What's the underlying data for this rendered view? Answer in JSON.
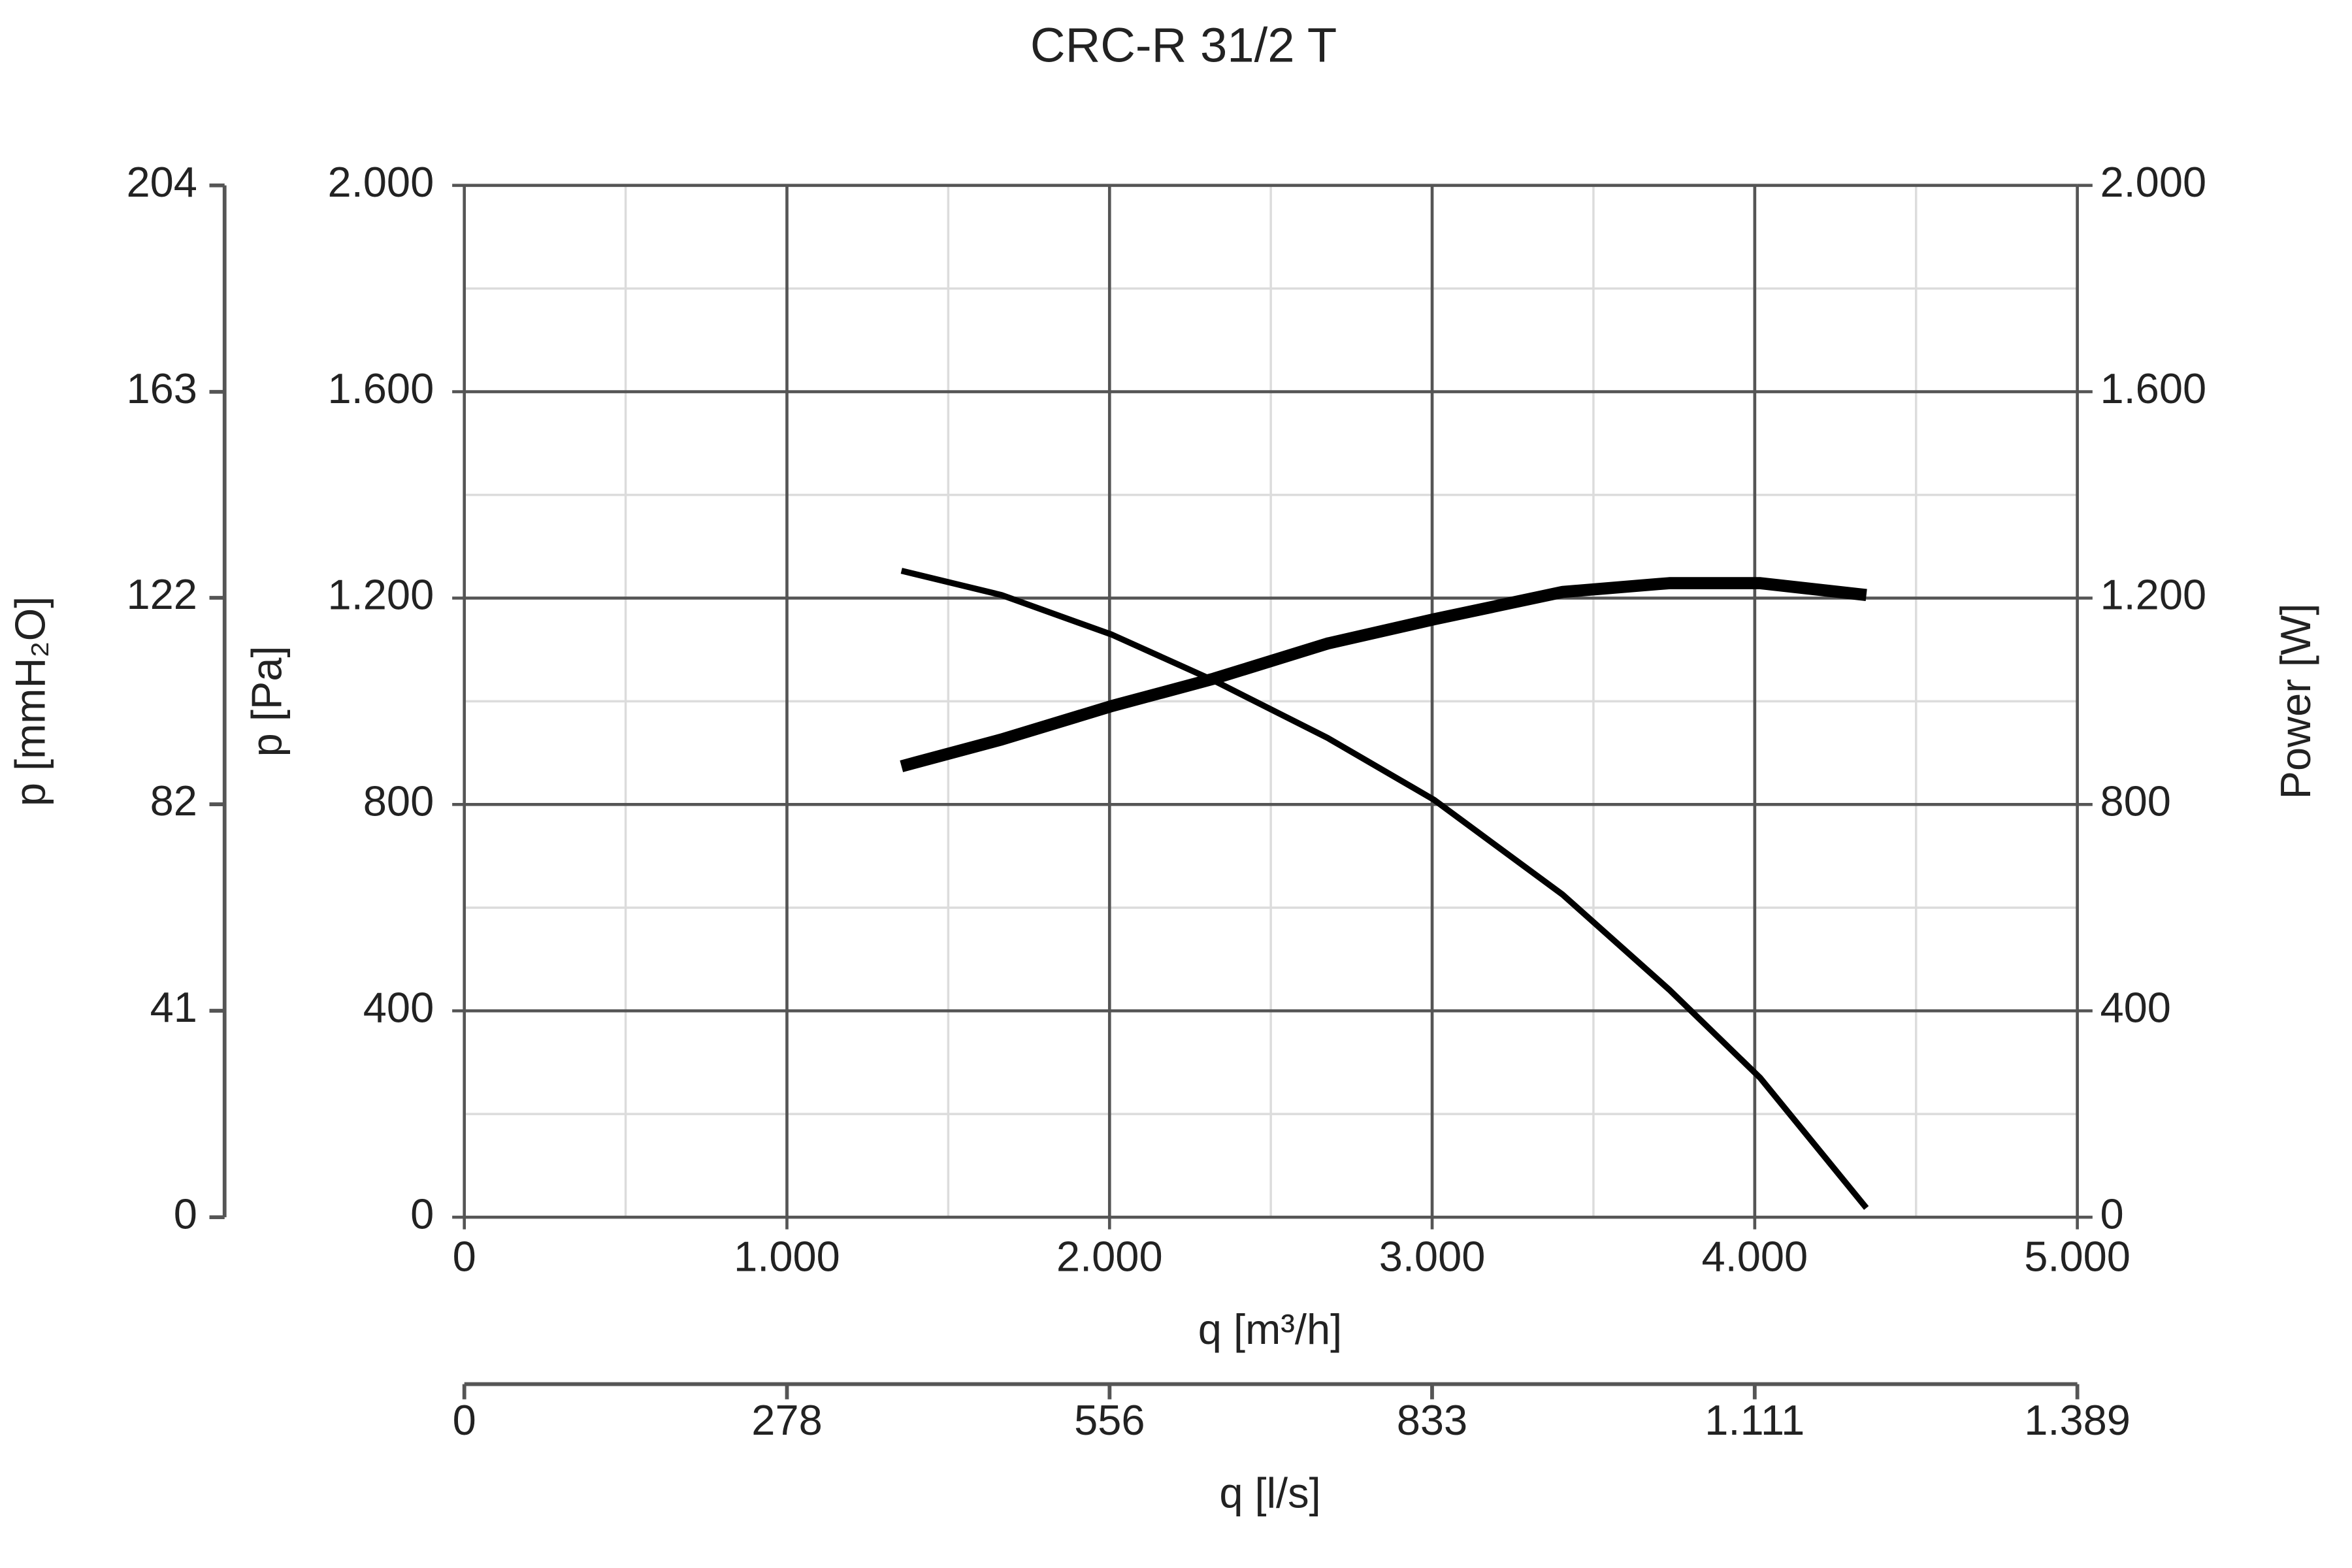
{
  "chart_data": {
    "type": "line",
    "title": "CRC-R 31/2 T",
    "x_label": "q [m³/h]",
    "y_label": "p [Pa]",
    "y2_label": "Power [W]",
    "y3_label": "p [mmH₂O]",
    "x2_label": "q [l/s]",
    "x": [
      1355,
      1665,
      2008,
      2324,
      2676,
      3006,
      3405,
      3735,
      4017,
      4346
    ],
    "series": [
      {
        "color": "#000000",
        "values": [
          1253,
          1206,
          1129,
          1040,
          929,
          809,
          625,
          441,
          270,
          18
        ]
      },
      {
        "color": "#000000",
        "axis": "y2",
        "values": [
          874,
          926,
          991,
          1044,
          1112,
          1159,
          1212,
          1229,
          1229,
          1206
        ]
      }
    ],
    "xlim": [
      0,
      5000
    ],
    "xticks": [
      0,
      {
        "value": 1000,
        "label": "1.000"
      },
      {
        "value": 2000,
        "label": "2.000"
      },
      {
        "value": 3000,
        "label": "3.000"
      },
      {
        "value": 4000,
        "label": "4.000"
      },
      {
        "value": 5000,
        "label": "5.000"
      }
    ],
    "ylim": [
      0,
      2000
    ],
    "yticks": [
      0,
      400,
      800,
      {
        "value": 1200,
        "label": "1.200"
      },
      {
        "value": 1600,
        "label": "1.600"
      },
      {
        "value": 2000,
        "label": "2.000"
      }
    ],
    "y2lim": [
      0,
      2000
    ],
    "y2ticks": [
      0,
      400,
      800,
      {
        "value": 1200,
        "label": "1.200"
      },
      {
        "value": 1600,
        "label": "1.600"
      },
      {
        "value": 2000,
        "label": "2.000"
      }
    ],
    "y3lim": [
      0,
      203.9
    ],
    "y3ticks": [
      0,
      {
        "value": 40.8,
        "label": "41"
      },
      {
        "value": 81.6,
        "label": "82"
      },
      {
        "value": 122.4,
        "label": "122"
      },
      {
        "value": 163.1,
        "label": "163"
      },
      {
        "value": 203.9,
        "label": "204"
      }
    ],
    "x2lim": [
      0,
      1388.9
    ],
    "x2ticks": [
      0,
      {
        "value": 277.8,
        "label": "278"
      },
      {
        "value": 555.6,
        "label": "556"
      },
      {
        "value": 833.3,
        "label": "833"
      },
      {
        "value": 1111.1,
        "label": "1.111"
      },
      {
        "value": 1388.9,
        "label": "1.389"
      }
    ],
    "grid": true,
    "minor_grid": true
  }
}
